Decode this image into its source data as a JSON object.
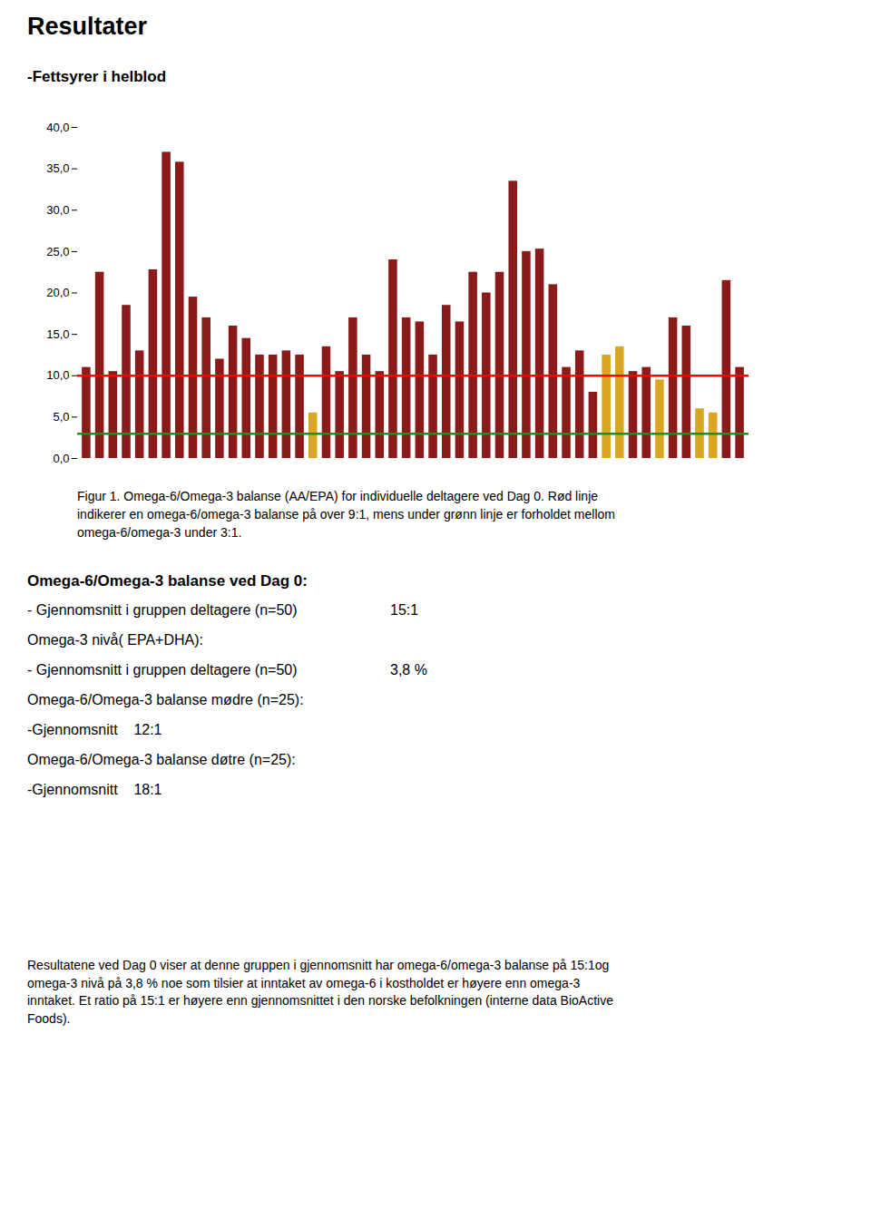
{
  "chart_data": {
    "type": "bar",
    "title": "Resultater",
    "subtitle": "-Fettsyrer i helblod",
    "categories": [
      null,
      null,
      null,
      null,
      null,
      null,
      null,
      null,
      null,
      null,
      null,
      null,
      null,
      null,
      null,
      null,
      null,
      null,
      null,
      null,
      null,
      null,
      null,
      null,
      null,
      null,
      null,
      null,
      null,
      null,
      null,
      null,
      null,
      null,
      null,
      null,
      null,
      null,
      null,
      null,
      null,
      null,
      null,
      null,
      null,
      null,
      null,
      null,
      null,
      null
    ],
    "values": [
      11,
      22.5,
      10.5,
      18.5,
      13,
      22.8,
      37,
      35.8,
      19.5,
      17,
      12,
      16,
      14.5,
      12.5,
      12.5,
      13,
      12.5,
      5.5,
      13.5,
      10.5,
      17,
      12.5,
      10.5,
      24,
      17,
      16.5,
      12.5,
      18.5,
      16.5,
      22.5,
      20,
      22.5,
      33.5,
      25,
      25.3,
      21,
      11,
      13,
      8,
      12.5,
      13.5,
      10.5,
      11,
      9.5,
      17,
      16,
      6,
      5.5,
      21.5,
      11
    ],
    "colors": [
      "#8B1A1A",
      "#8B1A1A",
      "#8B1A1A",
      "#8B1A1A",
      "#8B1A1A",
      "#8B1A1A",
      "#8B1A1A",
      "#8B1A1A",
      "#8B1A1A",
      "#8B1A1A",
      "#8B1A1A",
      "#8B1A1A",
      "#8B1A1A",
      "#8B1A1A",
      "#8B1A1A",
      "#8B1A1A",
      "#8B1A1A",
      "#DAA520",
      "#8B1A1A",
      "#8B1A1A",
      "#8B1A1A",
      "#8B1A1A",
      "#8B1A1A",
      "#8B1A1A",
      "#8B1A1A",
      "#8B1A1A",
      "#8B1A1A",
      "#8B1A1A",
      "#8B1A1A",
      "#8B1A1A",
      "#8B1A1A",
      "#8B1A1A",
      "#8B1A1A",
      "#8B1A1A",
      "#8B1A1A",
      "#8B1A1A",
      "#8B1A1A",
      "#8B1A1A",
      "#8B1A1A",
      "#DAA520",
      "#DAA520",
      "#8B1A1A",
      "#8B1A1A",
      "#DAA520",
      "#8B1A1A",
      "#8B1A1A",
      "#DAA520",
      "#DAA520",
      "#8B1A1A",
      "#8B1A1A"
    ],
    "reference_lines": [
      {
        "y": 10.0,
        "color": "red"
      },
      {
        "y": 3.0,
        "color": "#228B22"
      }
    ],
    "ylim": [
      0,
      40
    ],
    "yticks": [
      {
        "value": 0,
        "label": "0,0"
      },
      {
        "value": 5,
        "label": "5,0"
      },
      {
        "value": 10,
        "label": "10,0"
      },
      {
        "value": 15,
        "label": "15,0"
      },
      {
        "value": 20,
        "label": "20,0"
      },
      {
        "value": 25,
        "label": "25,0"
      },
      {
        "value": 30,
        "label": "30,0"
      },
      {
        "value": 35,
        "label": "35,0"
      },
      {
        "value": 40,
        "label": "40,0"
      }
    ],
    "grid": false,
    "tick_labels": "y",
    "caption": [
      "Figur 1. Omega-6/Omega-3 balanse (AA/EPA) for individuelle deltagere ved Dag 0. Rød linje",
      "indikerer en omega-6/omega-3 balanse på over 9:1, mens under grønn linje er forholdet mellom",
      "omega-6/omega-3 under 3:1."
    ],
    "annotations": [
      {
        "text": "Omega-6/Omega-3 balanse ved Dag 0:"
      },
      {
        "text": "- Gjennomsnitt i gruppen deltagere (n=50)",
        "result": "15:1"
      },
      {
        "text": "Omega-3 nivå( EPA+DHA):"
      },
      {
        "text": "- Gjennomsnitt i gruppen deltagere (n=50)",
        "result": "3,8 %"
      },
      {
        "text": "Omega-6/Omega-3 balanse mødre (n=25):"
      },
      {
        "text": "-Gjennomsnitt    12:1"
      },
      {
        "text": "Omega-6/Omega-3 balanse døtre (n=25):"
      },
      {
        "text": "-Gjennomsnitt    18:1"
      }
    ],
    "footer": "Resultatene ved Dag 0 viser at denne gruppen i gjennomsnitt har omega-6/omega-3 balanse på 15:1og\nomega-3 nivå på 3,8 % noe som tilsier at inntaket av omega-6 i kostholdet er høyere enn omega-3\ninntaket. Et ratio på 15:1 er høyere enn gjennomsnittet i den norske befolkningen (interne data BioActive\nFoods)."
  }
}
